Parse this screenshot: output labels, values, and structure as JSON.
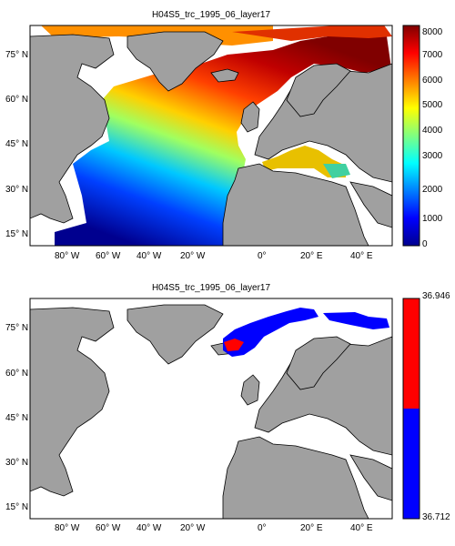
{
  "panels": [
    {
      "title": "H04S5_trc_1995_06_layer17",
      "y_ticks": [
        "75° N",
        "60° N",
        "45° N",
        "30° N",
        "15° N"
      ],
      "x_ticks": [
        "80° W",
        "60° W",
        "40° W",
        "20° W",
        "0°",
        "20° E",
        "40° E"
      ],
      "colorbar": {
        "type": "continuous",
        "colormap": "jet",
        "range": [
          0,
          8000
        ],
        "ticks": [
          "8000",
          "7000",
          "6000",
          "5000",
          "4000",
          "3000",
          "2000",
          "1000",
          "0"
        ]
      }
    },
    {
      "title": "H04S5_trc_1995_06_layer17",
      "y_ticks": [
        "75° N",
        "60° N",
        "45° N",
        "30° N",
        "15° N"
      ],
      "x_ticks": [
        "80° W",
        "60° W",
        "40° W",
        "20° W",
        "0°",
        "20° E",
        "40° E"
      ],
      "colorbar": {
        "type": "two-class",
        "colors": [
          "#ff0000",
          "#0000ff"
        ],
        "ticks": [
          "36.946",
          "36.712"
        ]
      }
    }
  ],
  "colors": {
    "land": "#a0a0a0",
    "no_data": "#ffffff",
    "coast": "#000000"
  }
}
